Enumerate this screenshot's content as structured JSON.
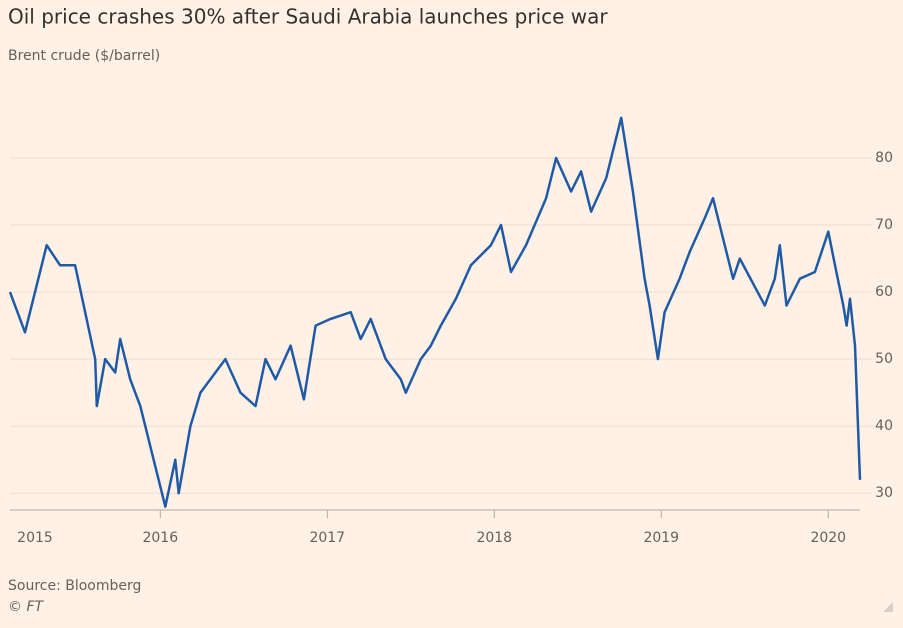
{
  "chart_data": {
    "type": "line",
    "title": "Oil price crashes 30% after Saudi Arabia launches price war",
    "subtitle": "Brent crude ($/barrel)",
    "source": "Source: Bloomberg",
    "credit": "© FT",
    "x": [
      2015.1,
      2015.19,
      2015.32,
      2015.4,
      2015.49,
      2015.61,
      2015.62,
      2015.67,
      2015.73,
      2015.76,
      2015.82,
      2015.88,
      2015.94,
      2016.03,
      2016.09,
      2016.11,
      2016.18,
      2016.24,
      2016.39,
      2016.48,
      2016.57,
      2016.63,
      2016.69,
      2016.78,
      2016.86,
      2016.93,
      2017.02,
      2017.14,
      2017.2,
      2017.26,
      2017.35,
      2017.44,
      2017.47,
      2017.56,
      2017.62,
      2017.68,
      2017.77,
      2017.86,
      2017.98,
      2018.04,
      2018.1,
      2018.19,
      2018.31,
      2018.37,
      2018.46,
      2018.52,
      2018.58,
      2018.67,
      2018.76,
      2018.83,
      2018.9,
      2018.93,
      2018.98,
      2019.02,
      2019.11,
      2019.17,
      2019.26,
      2019.31,
      2019.35,
      2019.43,
      2019.47,
      2019.62,
      2019.68,
      2019.71,
      2019.75,
      2019.83,
      2019.92,
      2020.0,
      2020.04,
      2020.09,
      2020.11,
      2020.13,
      2020.16,
      2020.19
    ],
    "series": [
      {
        "name": "Brent crude",
        "color": "#1f5aa6",
        "values": [
          60,
          54,
          67,
          64,
          64,
          50,
          43,
          50,
          48,
          53,
          47,
          43,
          37,
          28,
          35,
          30,
          40,
          45,
          50,
          45,
          43,
          50,
          47,
          52,
          44,
          55,
          56,
          57,
          53,
          56,
          50,
          47,
          45,
          50,
          52,
          55,
          59,
          64,
          67,
          70,
          63,
          67,
          74,
          80,
          75,
          78,
          72,
          77,
          86,
          75,
          62,
          58,
          50,
          57,
          62,
          66,
          71,
          74,
          70,
          62,
          65,
          58,
          62,
          67,
          58,
          62,
          63,
          69,
          64,
          58,
          55,
          59,
          52,
          32
        ]
      }
    ],
    "xlim": [
      2015.1,
      2020.19
    ],
    "xticks": [
      2015,
      2016,
      2017,
      2018,
      2019,
      2020
    ],
    "ylim": [
      27.5,
      88.5
    ],
    "yticks": [
      30,
      40,
      50,
      60,
      70,
      80
    ],
    "grid": true
  }
}
